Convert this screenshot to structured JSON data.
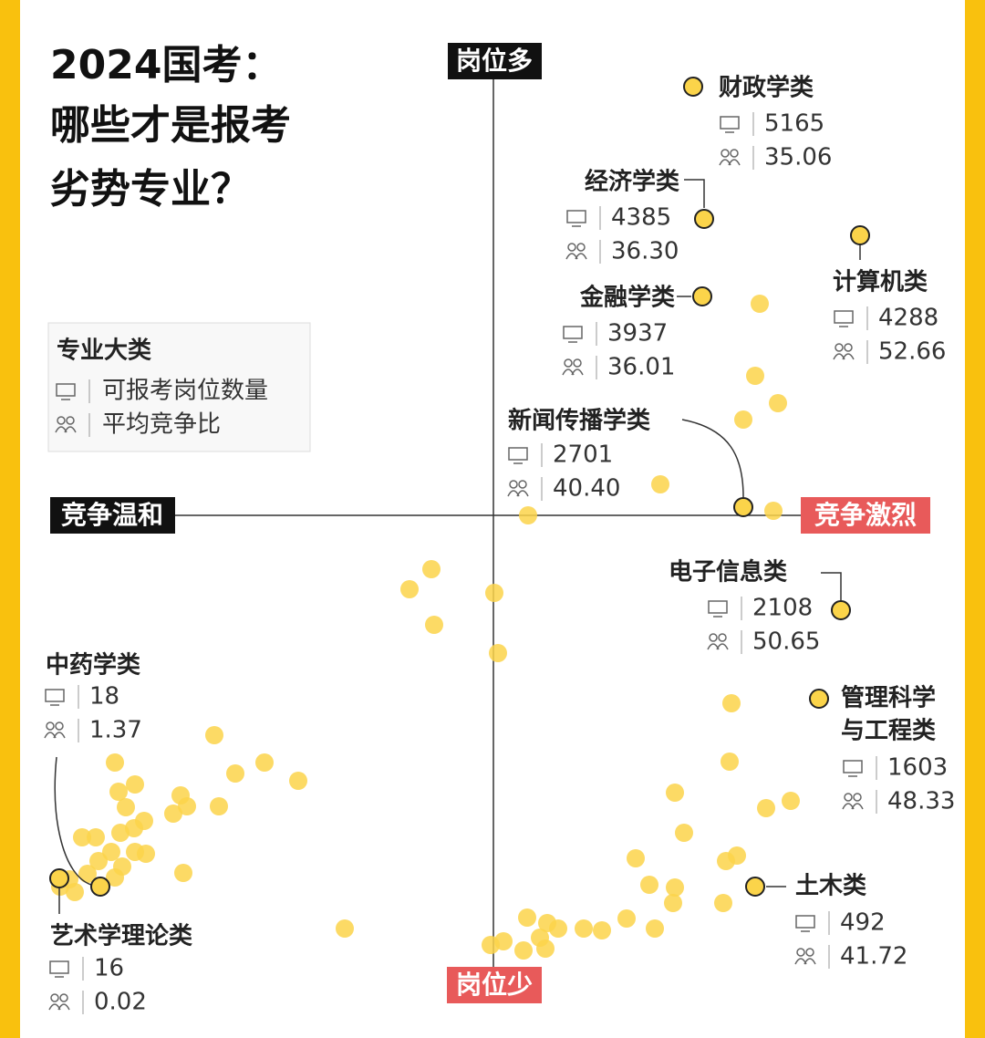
{
  "title_lines": [
    "2024国考：",
    "哪些才是报考",
    "劣势专业？"
  ],
  "axis": {
    "top": "岗位多",
    "bottom": "岗位少",
    "left": "竞争温和",
    "right": "竞争激烈"
  },
  "legend": {
    "title": "专业大类",
    "rows": [
      "可报考岗位数量",
      "平均竞争比"
    ]
  },
  "items": [
    {
      "name": "财政学类",
      "positions": 5165,
      "ratio": 35.06
    },
    {
      "name": "经济学类",
      "positions": 4385,
      "ratio": 36.3,
      "ratio_label": "36.30"
    },
    {
      "name": "计算机类",
      "positions": 4288,
      "ratio": 52.66
    },
    {
      "name": "金融学类",
      "positions": 3937,
      "ratio": 36.01
    },
    {
      "name": "新闻传播学类",
      "positions": 2701,
      "ratio": 40.4,
      "ratio_label": "40.40"
    },
    {
      "name": "电子信息类",
      "positions": 2108,
      "ratio": 50.65
    },
    {
      "name_lines": [
        "管理科学",
        "与工程类"
      ],
      "positions": 1603,
      "ratio": 48.33
    },
    {
      "name": "土木类",
      "positions": 492,
      "ratio": 41.72
    },
    {
      "name": "中药学类",
      "positions": 18,
      "ratio": 1.37
    },
    {
      "name": "艺术学理论类",
      "positions": 16,
      "ratio": 0.02
    }
  ]
}
